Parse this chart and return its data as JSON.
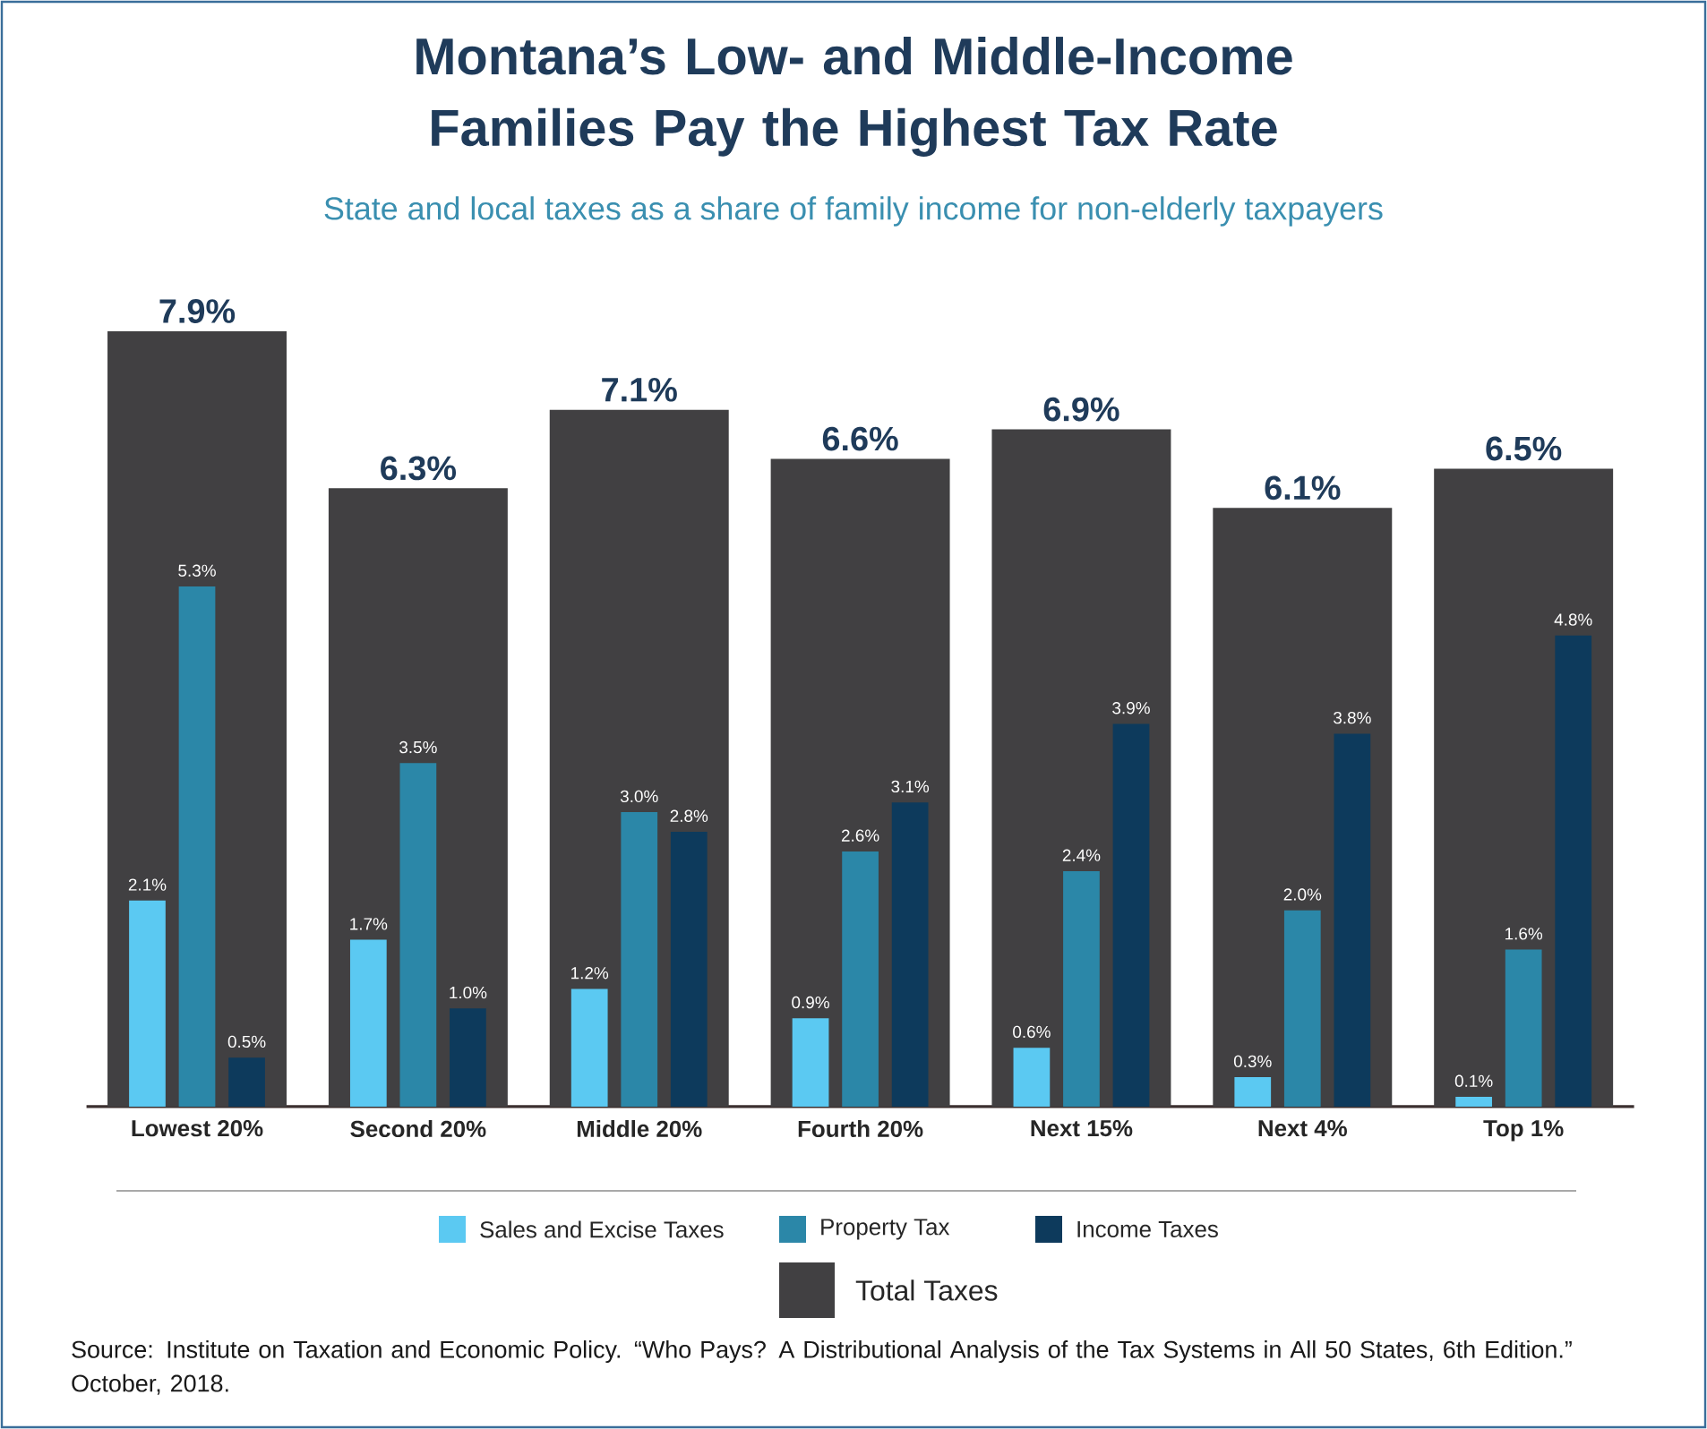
{
  "chart_data": {
    "type": "bar",
    "title": "Montana’s Low- and Middle-Income Families Pay the Highest Tax Rate",
    "subtitle": "State and local taxes as a share of family income for non-elderly taxpayers",
    "categories": [
      "Lowest 20%",
      "Second 20%",
      "Middle 20%",
      "Fourth 20%",
      "Next 15%",
      "Next 4%",
      "Top 1%"
    ],
    "series": [
      {
        "name": "Total Taxes",
        "color": "#414042",
        "values": [
          7.9,
          6.3,
          7.1,
          6.6,
          6.9,
          6.1,
          6.5
        ],
        "value_labels": [
          "7.9%",
          "6.3%",
          "7.1%",
          "6.6%",
          "6.9%",
          "6.1%",
          "6.5%"
        ]
      },
      {
        "name": "Sales and Excise Taxes",
        "color": "#5bc9f2",
        "values": [
          2.1,
          1.7,
          1.2,
          0.9,
          0.6,
          0.3,
          0.1
        ],
        "value_labels": [
          "2.1%",
          "1.7%",
          "1.2%",
          "0.9%",
          "0.6%",
          "0.3%",
          "0.1%"
        ]
      },
      {
        "name": "Property Tax",
        "color": "#2b87a8",
        "values": [
          5.3,
          3.5,
          3.0,
          2.6,
          2.4,
          2.0,
          1.6
        ],
        "value_labels": [
          "5.3%",
          "3.5%",
          "3.0%",
          "2.6%",
          "2.4%",
          "2.0%",
          "1.6%"
        ]
      },
      {
        "name": "Income Taxes",
        "color": "#0d3a5c",
        "values": [
          0.5,
          1.0,
          2.8,
          3.1,
          3.9,
          3.8,
          4.8
        ],
        "value_labels": [
          "0.5%",
          "1.0%",
          "2.8%",
          "3.1%",
          "3.9%",
          "3.8%",
          "4.8%"
        ]
      }
    ],
    "legend": "bottom",
    "annotations": [
      "Source: Institute on Taxation and Economic Policy. “Who Pays? A Distributional Analysis of the Tax Systems in All 50 States, 6th Edition.” October, 2018."
    ]
  }
}
